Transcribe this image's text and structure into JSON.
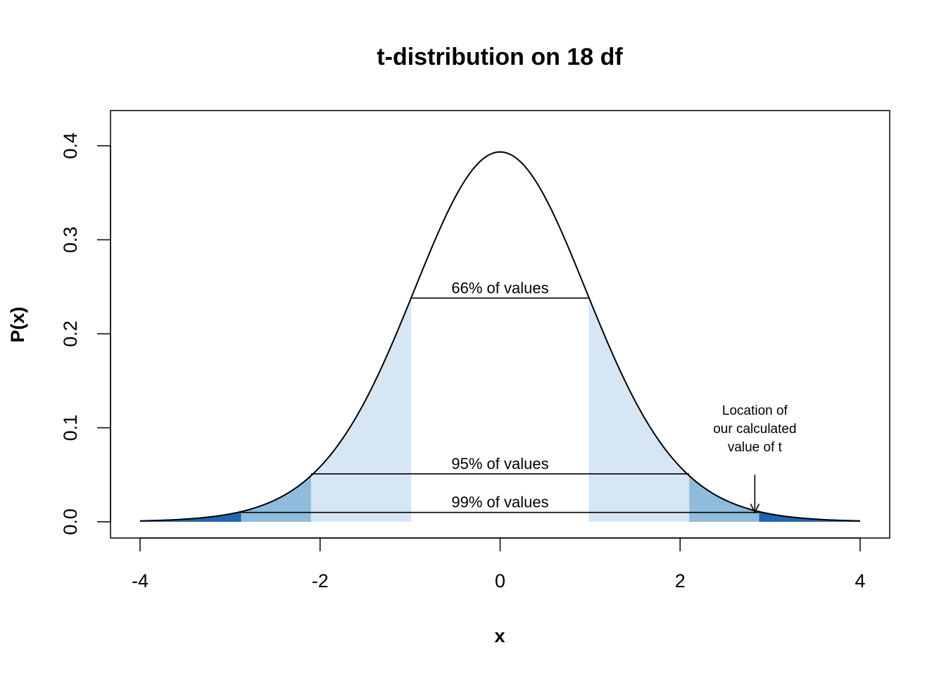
{
  "chart_data": {
    "type": "area",
    "title": "t-distribution on 18 df",
    "xlabel": "x",
    "ylabel": "P(x)",
    "df": 18,
    "xlim": [
      -4,
      4
    ],
    "ylim": [
      0,
      0.4
    ],
    "x_ticks": [
      -4,
      -2,
      0,
      2,
      4
    ],
    "y_ticks": [
      0.0,
      0.1,
      0.2,
      0.3,
      0.4
    ],
    "x_tick_labels": [
      "-4",
      "-2",
      "0",
      "2",
      "4"
    ],
    "y_tick_labels": [
      "0.0",
      "0.1",
      "0.2",
      "0.3",
      "0.4"
    ],
    "grid": false,
    "colors": {
      "curve": "#000000",
      "band_66": "#d6e6f4",
      "band_95": "#8fbcdc",
      "band_99": "#2166ac"
    },
    "bands": [
      {
        "label": "66% of values",
        "t": 0.986,
        "density": 0.238
      },
      {
        "label": "95% of values",
        "t": 2.101,
        "density": 0.051
      },
      {
        "label": "99% of values",
        "t": 2.878,
        "density": 0.01
      }
    ],
    "annotation": {
      "lines": [
        "Location of",
        "our calculated",
        "value of t"
      ],
      "x": 2.83,
      "arrow_from_y": 0.05,
      "arrow_to_y": 0.01
    }
  }
}
